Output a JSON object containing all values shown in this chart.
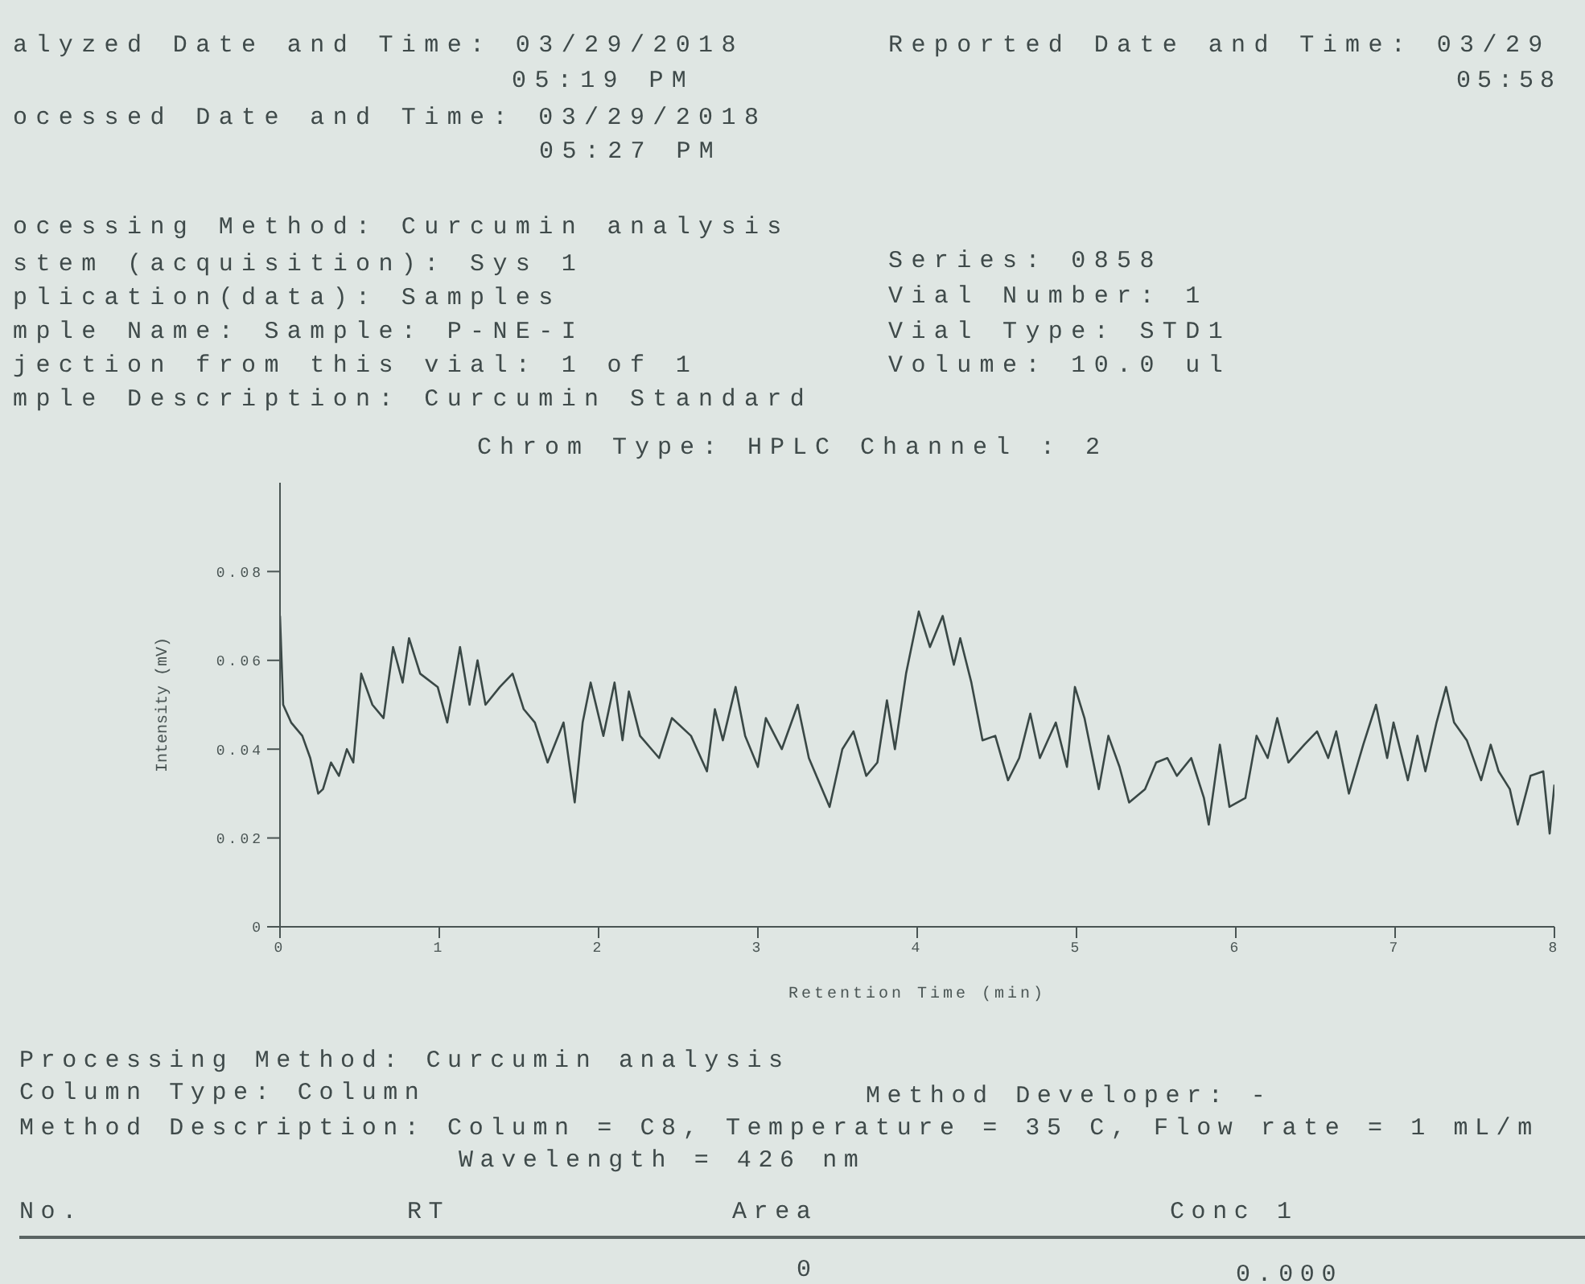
{
  "chart_data": {
    "type": "line",
    "title": "Chrom Type: HPLC Channel : 2",
    "xlabel": "Retention Time (min)",
    "ylabel": "Intensity (mV)",
    "xlim": [
      0,
      8
    ],
    "xticks": [
      0,
      1,
      2,
      3,
      4,
      5,
      6,
      7,
      8
    ],
    "ylim": [
      0,
      0.1
    ],
    "yticks": [
      0,
      0.02,
      0.04,
      0.06,
      {
        "value": 0.08,
        "label": "0.08"
      }
    ],
    "grid": false,
    "marker": "none",
    "annotations": [
      "alyzed Date and Time: 03/29/2018",
      "05:19 PM",
      "Reported Date and Time: 03/29",
      "05:58",
      "ocessed Date and Time: 03/29/2018",
      "05:27 PM",
      "ocessing Method: Curcumin analysis",
      "stem (acquisition): Sys 1",
      "plication(data): Samples",
      "mple Name: Sample: P-NE-I",
      "jection from this vial: 1 of 1",
      "mple Description: Curcumin Standard",
      "Series: 0858",
      "Vial Number: 1",
      "Vial Type: STD1",
      "Volume: 10.0 ul",
      "Processing Method: Curcumin analysis",
      "Column Type: Column",
      "Method Developer: -",
      "Method Description: Column = C8, Temperature = 35 C, Flow rate = 1 mL/m",
      "Wavelength = 426 nm",
      "No.",
      "RT",
      "Area",
      "Conc 1",
      "0",
      "0.000"
    ],
    "series": [
      {
        "color": "#3a4846",
        "x": [
          0,
          0.02,
          0.07,
          0.14,
          0.19,
          0.24,
          0.27,
          0.32,
          0.37,
          0.42,
          0.46,
          0.51,
          0.58,
          0.65,
          0.71,
          0.77,
          0.81,
          0.88,
          0.99,
          1.05,
          1.13,
          1.19,
          1.24,
          1.29,
          1.38,
          1.46,
          1.53,
          1.6,
          1.68,
          1.78,
          1.85,
          1.9,
          1.95,
          2.03,
          2.1,
          2.15,
          2.19,
          2.26,
          2.38,
          2.46,
          2.58,
          2.68,
          2.73,
          2.78,
          2.86,
          2.92,
          3,
          3.05,
          3.15,
          3.25,
          3.32,
          3.45,
          3.53,
          3.6,
          3.68,
          3.75,
          3.81,
          3.86,
          3.93,
          4.01,
          4.08,
          4.16,
          4.23,
          4.27,
          4.34,
          4.41,
          4.49,
          4.57,
          4.64,
          4.71,
          4.77,
          4.87,
          4.94,
          4.99,
          5.05,
          5.14,
          5.2,
          5.27,
          5.33,
          5.43,
          5.5,
          5.57,
          5.63,
          5.72,
          5.8,
          5.83,
          5.9,
          5.96,
          6.06,
          6.13,
          6.2,
          6.26,
          6.33,
          6.43,
          6.51,
          6.58,
          6.63,
          6.71,
          6.8,
          6.88,
          6.95,
          6.99,
          7.08,
          7.14,
          7.19,
          7.26,
          7.32,
          7.37,
          7.45,
          7.54,
          7.6,
          7.65,
          7.72,
          7.77,
          7.85,
          7.93,
          7.97,
          8
        ],
        "values": [
          0.07,
          0.05,
          0.046,
          0.043,
          0.038,
          0.03,
          0.031,
          0.037,
          0.034,
          0.04,
          0.037,
          0.057,
          0.05,
          0.047,
          0.063,
          0.055,
          0.065,
          0.057,
          0.054,
          0.046,
          0.063,
          0.05,
          0.06,
          0.05,
          0.054,
          0.057,
          0.049,
          0.046,
          0.037,
          0.046,
          0.028,
          0.046,
          0.055,
          0.043,
          0.055,
          0.042,
          0.053,
          0.043,
          0.038,
          0.047,
          0.043,
          0.035,
          0.049,
          0.042,
          0.054,
          0.043,
          0.036,
          0.047,
          0.04,
          0.05,
          0.038,
          0.027,
          0.04,
          0.044,
          0.034,
          0.037,
          0.051,
          0.04,
          0.057,
          0.071,
          0.063,
          0.07,
          0.059,
          0.065,
          0.055,
          0.042,
          0.043,
          0.033,
          0.038,
          0.048,
          0.038,
          0.046,
          0.036,
          0.054,
          0.047,
          0.031,
          0.043,
          0.036,
          0.028,
          0.031,
          0.037,
          0.038,
          0.034,
          0.038,
          0.029,
          0.023,
          0.041,
          0.027,
          0.029,
          0.043,
          0.038,
          0.047,
          0.037,
          0.041,
          0.044,
          0.038,
          0.044,
          0.03,
          0.041,
          0.05,
          0.038,
          0.046,
          0.033,
          0.043,
          0.035,
          0.046,
          0.054,
          0.046,
          0.042,
          0.033,
          0.041,
          0.035,
          0.031,
          0.023,
          0.034,
          0.035,
          0.021,
          0.032
        ]
      }
    ]
  }
}
